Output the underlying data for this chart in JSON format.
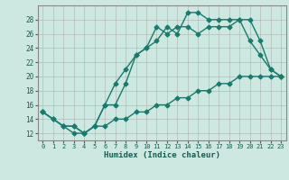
{
  "xlabel": "Humidex (Indice chaleur)",
  "background_color": "#cce8e0",
  "grid_color": "#b0b0b0",
  "line_color": "#1a7a6e",
  "xlim": [
    -0.5,
    23.5
  ],
  "ylim": [
    11,
    30
  ],
  "xticks": [
    0,
    1,
    2,
    3,
    4,
    5,
    6,
    7,
    8,
    9,
    10,
    11,
    12,
    13,
    14,
    15,
    16,
    17,
    18,
    19,
    20,
    21,
    22,
    23
  ],
  "yticks": [
    12,
    14,
    16,
    18,
    20,
    22,
    24,
    26,
    28
  ],
  "line1_x": [
    0,
    1,
    2,
    3,
    4,
    5,
    6,
    7,
    8,
    9,
    10,
    11,
    12,
    13,
    14,
    15,
    16,
    17,
    18,
    19,
    20,
    21,
    22,
    23
  ],
  "line1_y": [
    15,
    14,
    13,
    13,
    12,
    13,
    16,
    19,
    21,
    23,
    24,
    25,
    27,
    26,
    29,
    29,
    28,
    28,
    28,
    28,
    28,
    25,
    21,
    20
  ],
  "line2_x": [
    0,
    2,
    3,
    4,
    5,
    6,
    7,
    8,
    9,
    10,
    11,
    12,
    13,
    14,
    15,
    16,
    17,
    18,
    19,
    20,
    21,
    22,
    23
  ],
  "line2_y": [
    15,
    13,
    13,
    12,
    13,
    16,
    16,
    19,
    23,
    24,
    27,
    26,
    27,
    27,
    26,
    27,
    27,
    27,
    28,
    25,
    23,
    21,
    20
  ],
  "line3_x": [
    0,
    1,
    2,
    3,
    4,
    5,
    6,
    7,
    8,
    9,
    10,
    11,
    12,
    13,
    14,
    15,
    16,
    17,
    18,
    19,
    20,
    21,
    22,
    23
  ],
  "line3_y": [
    15,
    14,
    13,
    12,
    12,
    13,
    13,
    14,
    14,
    15,
    15,
    16,
    16,
    17,
    17,
    18,
    18,
    19,
    19,
    20,
    20,
    20,
    20,
    20
  ],
  "marker": "D",
  "markersize": 2.5,
  "linewidth": 1.0
}
